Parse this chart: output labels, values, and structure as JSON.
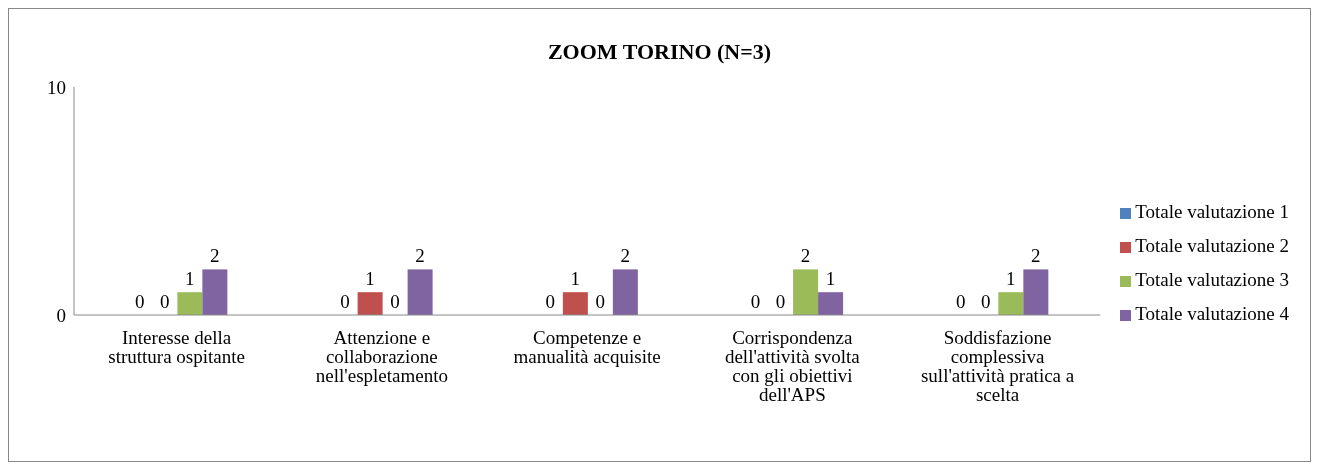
{
  "chart_data": {
    "type": "bar",
    "title": "ZOOM TORINO (N=3)",
    "categories": [
      "Interesse della struttura ospitante",
      "Attenzione e collaborazione nell'espletamento",
      "Competenze e manualità acquisite",
      "Corrispondenza dell'attività svolta con gli obiettivi dell'APS",
      "Soddisfazione complessiva sull'attività pratica a scelta"
    ],
    "series": [
      {
        "name": "Totale valutazione 1",
        "color": "#4f81bd",
        "values": [
          0,
          0,
          0,
          0,
          0
        ]
      },
      {
        "name": "Totale valutazione 2",
        "color": "#c0504d",
        "values": [
          0,
          1,
          1,
          0,
          0
        ]
      },
      {
        "name": "Totale valutazione 3",
        "color": "#9bbb59",
        "values": [
          1,
          0,
          0,
          2,
          1
        ]
      },
      {
        "name": "Totale valutazione 4",
        "color": "#8064a2",
        "values": [
          2,
          2,
          2,
          1,
          2
        ]
      }
    ],
    "ylim": [
      0,
      10
    ],
    "yticks": [
      0,
      10
    ],
    "grid": false,
    "legend": "right",
    "data_labels": true
  }
}
